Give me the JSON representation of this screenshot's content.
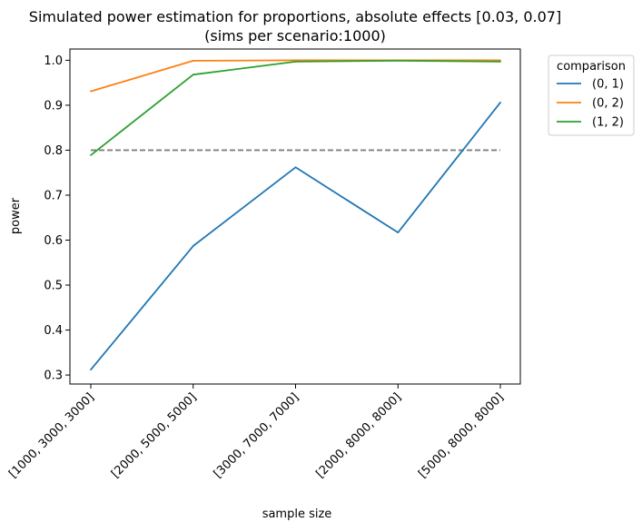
{
  "chart_data": {
    "type": "line",
    "title": "Simulated power estimation for proportions, absolute effects [0.03, 0.07]",
    "subtitle": "(sims per scenario:1000)",
    "xlabel": "sample size",
    "ylabel": "power",
    "categories": [
      "[1000, 3000, 3000]",
      "[2000, 5000, 5000]",
      "[3000, 7000, 7000]",
      "[2000, 8000, 8000]",
      "[5000, 8000, 8000]"
    ],
    "ylim": [
      0.28,
      1.025
    ],
    "yticks": [
      0.3,
      0.4,
      0.5,
      0.6,
      0.7,
      0.8,
      0.9,
      1.0
    ],
    "ytick_labels": [
      "0.3",
      "0.4",
      "0.5",
      "0.6",
      "0.7",
      "0.8",
      "0.9",
      "1.0"
    ],
    "grid": false,
    "legend": {
      "title": "comparison",
      "placement": "outside-top-right"
    },
    "series": [
      {
        "name": "(0, 1)",
        "color": "#1f77b4",
        "values": [
          0.312,
          0.587,
          0.762,
          0.617,
          0.906
        ]
      },
      {
        "name": "(0, 2)",
        "color": "#ff7f0e",
        "values": [
          0.931,
          0.999,
          1.0,
          1.0,
          1.0
        ]
      },
      {
        "name": "(1, 2)",
        "color": "#2ca02c",
        "values": [
          0.789,
          0.968,
          0.997,
          0.999,
          0.997
        ]
      }
    ],
    "reference_line": {
      "value": 0.8,
      "style": "dashed",
      "color": "#808080"
    }
  }
}
